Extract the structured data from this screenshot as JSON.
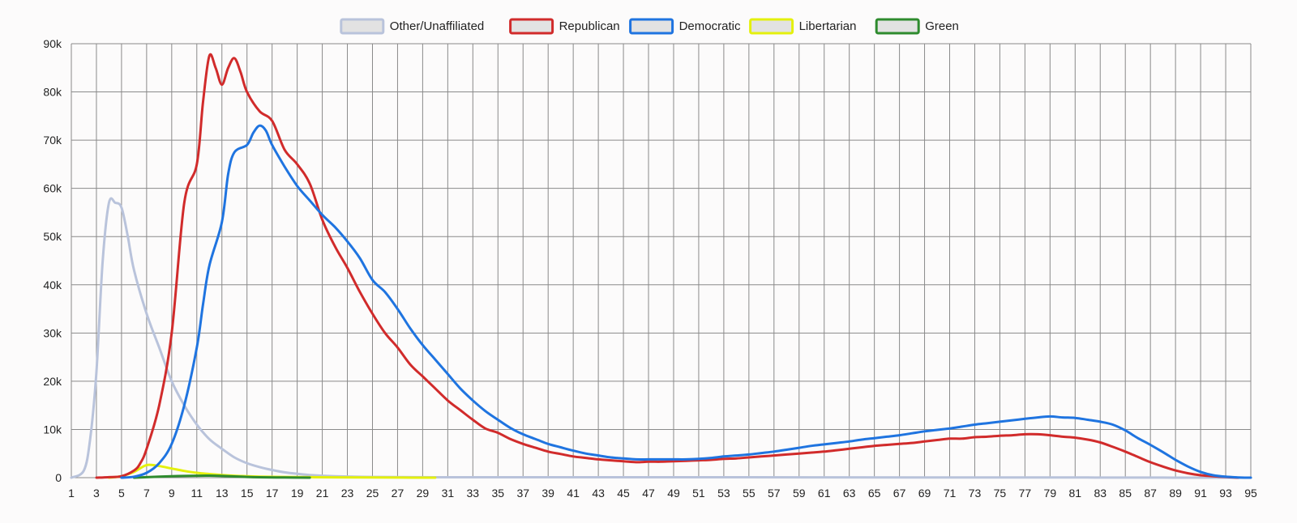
{
  "chart_data": {
    "type": "line",
    "title": "",
    "xlabel": "",
    "ylabel": "",
    "x_ticks": [
      1,
      3,
      5,
      7,
      9,
      11,
      13,
      15,
      17,
      19,
      21,
      23,
      25,
      27,
      29,
      31,
      33,
      35,
      37,
      39,
      41,
      43,
      45,
      47,
      49,
      51,
      53,
      55,
      57,
      59,
      61,
      63,
      65,
      67,
      69,
      71,
      73,
      75,
      77,
      79,
      81,
      83,
      85,
      87,
      89,
      91,
      93,
      95
    ],
    "xlim": [
      1,
      95
    ],
    "y_ticks": [
      0,
      10000,
      20000,
      30000,
      40000,
      50000,
      60000,
      70000,
      80000,
      90000
    ],
    "y_tick_labels": [
      "0",
      "10k",
      "20k",
      "30k",
      "40k",
      "50k",
      "60k",
      "70k",
      "80k",
      "90k"
    ],
    "ylim": [
      0,
      90000
    ],
    "grid": true,
    "legend_position": "top-center",
    "series": [
      {
        "name": "Other/Unaffiliated",
        "color": "#b9c3db",
        "points": [
          [
            1,
            0
          ],
          [
            2,
            1500
          ],
          [
            2.5,
            8000
          ],
          [
            3,
            22000
          ],
          [
            3.5,
            45000
          ],
          [
            4,
            57000
          ],
          [
            4.5,
            57000
          ],
          [
            5,
            56000
          ],
          [
            5.5,
            50000
          ],
          [
            6,
            43000
          ],
          [
            7,
            34000
          ],
          [
            8,
            27000
          ],
          [
            9,
            20000
          ],
          [
            10,
            15000
          ],
          [
            11,
            11000
          ],
          [
            12,
            8000
          ],
          [
            13,
            6000
          ],
          [
            14,
            4200
          ],
          [
            15,
            3000
          ],
          [
            16,
            2200
          ],
          [
            17,
            1600
          ],
          [
            18,
            1100
          ],
          [
            19,
            800
          ],
          [
            20,
            550
          ],
          [
            22,
            300
          ],
          [
            25,
            150
          ],
          [
            30,
            80
          ],
          [
            40,
            80
          ],
          [
            50,
            80
          ],
          [
            60,
            60
          ],
          [
            70,
            50
          ],
          [
            80,
            40
          ],
          [
            82,
            30
          ],
          [
            84,
            20
          ],
          [
            88,
            10
          ],
          [
            90,
            0
          ],
          [
            95,
            0
          ]
        ]
      },
      {
        "name": "Republican",
        "color": "#d12b2b",
        "points": [
          [
            3,
            0
          ],
          [
            4,
            100
          ],
          [
            5,
            300
          ],
          [
            6,
            1500
          ],
          [
            6.5,
            3000
          ],
          [
            7,
            6000
          ],
          [
            8,
            15000
          ],
          [
            9,
            30000
          ],
          [
            10,
            57000
          ],
          [
            11,
            65000
          ],
          [
            11.5,
            78000
          ],
          [
            12,
            87500
          ],
          [
            12.5,
            85000
          ],
          [
            13,
            81500
          ],
          [
            13.5,
            85000
          ],
          [
            14,
            87000
          ],
          [
            14.5,
            84000
          ],
          [
            15,
            80000
          ],
          [
            16,
            76000
          ],
          [
            17,
            74000
          ],
          [
            18,
            68000
          ],
          [
            19,
            65000
          ],
          [
            20,
            61000
          ],
          [
            21,
            53500
          ],
          [
            22,
            48000
          ],
          [
            23,
            43500
          ],
          [
            24,
            38500
          ],
          [
            25,
            34000
          ],
          [
            26,
            30000
          ],
          [
            27,
            27000
          ],
          [
            28,
            23500
          ],
          [
            29,
            21000
          ],
          [
            30,
            18500
          ],
          [
            31,
            16000
          ],
          [
            32,
            14000
          ],
          [
            33,
            12000
          ],
          [
            34,
            10200
          ],
          [
            35,
            9300
          ],
          [
            36,
            8000
          ],
          [
            37,
            7000
          ],
          [
            38,
            6200
          ],
          [
            39,
            5400
          ],
          [
            40,
            4900
          ],
          [
            41,
            4400
          ],
          [
            42,
            4100
          ],
          [
            43,
            3800
          ],
          [
            44,
            3600
          ],
          [
            45,
            3400
          ],
          [
            46,
            3200
          ],
          [
            47,
            3300
          ],
          [
            48,
            3300
          ],
          [
            49,
            3400
          ],
          [
            50,
            3500
          ],
          [
            51,
            3600
          ],
          [
            52,
            3700
          ],
          [
            53,
            3900
          ],
          [
            54,
            4000
          ],
          [
            55,
            4200
          ],
          [
            56,
            4400
          ],
          [
            57,
            4600
          ],
          [
            58,
            4800
          ],
          [
            59,
            5000
          ],
          [
            60,
            5200
          ],
          [
            61,
            5400
          ],
          [
            62,
            5700
          ],
          [
            63,
            6000
          ],
          [
            64,
            6300
          ],
          [
            65,
            6600
          ],
          [
            66,
            6800
          ],
          [
            67,
            7000
          ],
          [
            68,
            7200
          ],
          [
            69,
            7500
          ],
          [
            70,
            7800
          ],
          [
            71,
            8100
          ],
          [
            72,
            8100
          ],
          [
            73,
            8400
          ],
          [
            74,
            8500
          ],
          [
            75,
            8700
          ],
          [
            76,
            8800
          ],
          [
            77,
            9000
          ],
          [
            78,
            9000
          ],
          [
            79,
            8800
          ],
          [
            80,
            8500
          ],
          [
            81,
            8300
          ],
          [
            82,
            7900
          ],
          [
            83,
            7300
          ],
          [
            84,
            6400
          ],
          [
            85,
            5400
          ],
          [
            86,
            4300
          ],
          [
            87,
            3200
          ],
          [
            88,
            2300
          ],
          [
            89,
            1500
          ],
          [
            90,
            900
          ],
          [
            91,
            500
          ],
          [
            92,
            300
          ],
          [
            93,
            150
          ],
          [
            94,
            0
          ]
        ]
      },
      {
        "name": "Democratic",
        "color": "#1f74e0",
        "points": [
          [
            5,
            0
          ],
          [
            6,
            200
          ],
          [
            7,
            1000
          ],
          [
            8,
            3000
          ],
          [
            9,
            7000
          ],
          [
            10,
            15000
          ],
          [
            11,
            27000
          ],
          [
            11.5,
            36000
          ],
          [
            12,
            44000
          ],
          [
            13,
            53000
          ],
          [
            13.5,
            63000
          ],
          [
            14,
            67500
          ],
          [
            15,
            69000
          ],
          [
            15.5,
            71500
          ],
          [
            16,
            73000
          ],
          [
            16.5,
            72000
          ],
          [
            17,
            69000
          ],
          [
            18,
            64500
          ],
          [
            19,
            60500
          ],
          [
            20,
            57500
          ],
          [
            21,
            54500
          ],
          [
            22,
            52000
          ],
          [
            23,
            49000
          ],
          [
            24,
            45500
          ],
          [
            25,
            41000
          ],
          [
            26,
            38500
          ],
          [
            27,
            35000
          ],
          [
            28,
            31000
          ],
          [
            29,
            27500
          ],
          [
            30,
            24500
          ],
          [
            31,
            21500
          ],
          [
            32,
            18500
          ],
          [
            33,
            16000
          ],
          [
            34,
            13800
          ],
          [
            35,
            12000
          ],
          [
            36,
            10300
          ],
          [
            37,
            9000
          ],
          [
            38,
            8000
          ],
          [
            39,
            7000
          ],
          [
            40,
            6300
          ],
          [
            41,
            5600
          ],
          [
            42,
            5000
          ],
          [
            43,
            4600
          ],
          [
            44,
            4200
          ],
          [
            45,
            4000
          ],
          [
            46,
            3800
          ],
          [
            47,
            3800
          ],
          [
            48,
            3800
          ],
          [
            49,
            3800
          ],
          [
            50,
            3800
          ],
          [
            51,
            3900
          ],
          [
            52,
            4100
          ],
          [
            53,
            4400
          ],
          [
            54,
            4600
          ],
          [
            55,
            4800
          ],
          [
            56,
            5100
          ],
          [
            57,
            5400
          ],
          [
            58,
            5800
          ],
          [
            59,
            6200
          ],
          [
            60,
            6600
          ],
          [
            61,
            6900
          ],
          [
            62,
            7200
          ],
          [
            63,
            7500
          ],
          [
            64,
            7900
          ],
          [
            65,
            8200
          ],
          [
            66,
            8500
          ],
          [
            67,
            8800
          ],
          [
            68,
            9200
          ],
          [
            69,
            9600
          ],
          [
            70,
            9900
          ],
          [
            71,
            10200
          ],
          [
            72,
            10600
          ],
          [
            73,
            11000
          ],
          [
            74,
            11300
          ],
          [
            75,
            11600
          ],
          [
            76,
            11900
          ],
          [
            77,
            12200
          ],
          [
            78,
            12500
          ],
          [
            79,
            12700
          ],
          [
            80,
            12500
          ],
          [
            81,
            12400
          ],
          [
            82,
            12000
          ],
          [
            83,
            11600
          ],
          [
            84,
            11000
          ],
          [
            85,
            9800
          ],
          [
            86,
            8200
          ],
          [
            87,
            6800
          ],
          [
            88,
            5300
          ],
          [
            89,
            3700
          ],
          [
            90,
            2300
          ],
          [
            91,
            1200
          ],
          [
            92,
            500
          ],
          [
            93,
            200
          ],
          [
            94,
            50
          ],
          [
            95,
            0
          ]
        ]
      },
      {
        "name": "Libertarian",
        "color": "#e4f00d",
        "points": [
          [
            4,
            0
          ],
          [
            5,
            300
          ],
          [
            6,
            1200
          ],
          [
            7,
            2600
          ],
          [
            8,
            2400
          ],
          [
            9,
            1900
          ],
          [
            10,
            1400
          ],
          [
            11,
            1000
          ],
          [
            12,
            750
          ],
          [
            13,
            550
          ],
          [
            14,
            400
          ],
          [
            15,
            300
          ],
          [
            16,
            220
          ],
          [
            18,
            150
          ],
          [
            20,
            100
          ],
          [
            22,
            60
          ],
          [
            25,
            30
          ],
          [
            30,
            0
          ]
        ]
      },
      {
        "name": "Green",
        "color": "#2e8b2e",
        "points": [
          [
            6,
            0
          ],
          [
            7,
            100
          ],
          [
            8,
            200
          ],
          [
            9,
            300
          ],
          [
            10,
            350
          ],
          [
            11,
            400
          ],
          [
            12,
            420
          ],
          [
            13,
            350
          ],
          [
            14,
            250
          ],
          [
            15,
            150
          ],
          [
            16,
            80
          ],
          [
            18,
            30
          ],
          [
            20,
            0
          ]
        ]
      }
    ]
  }
}
